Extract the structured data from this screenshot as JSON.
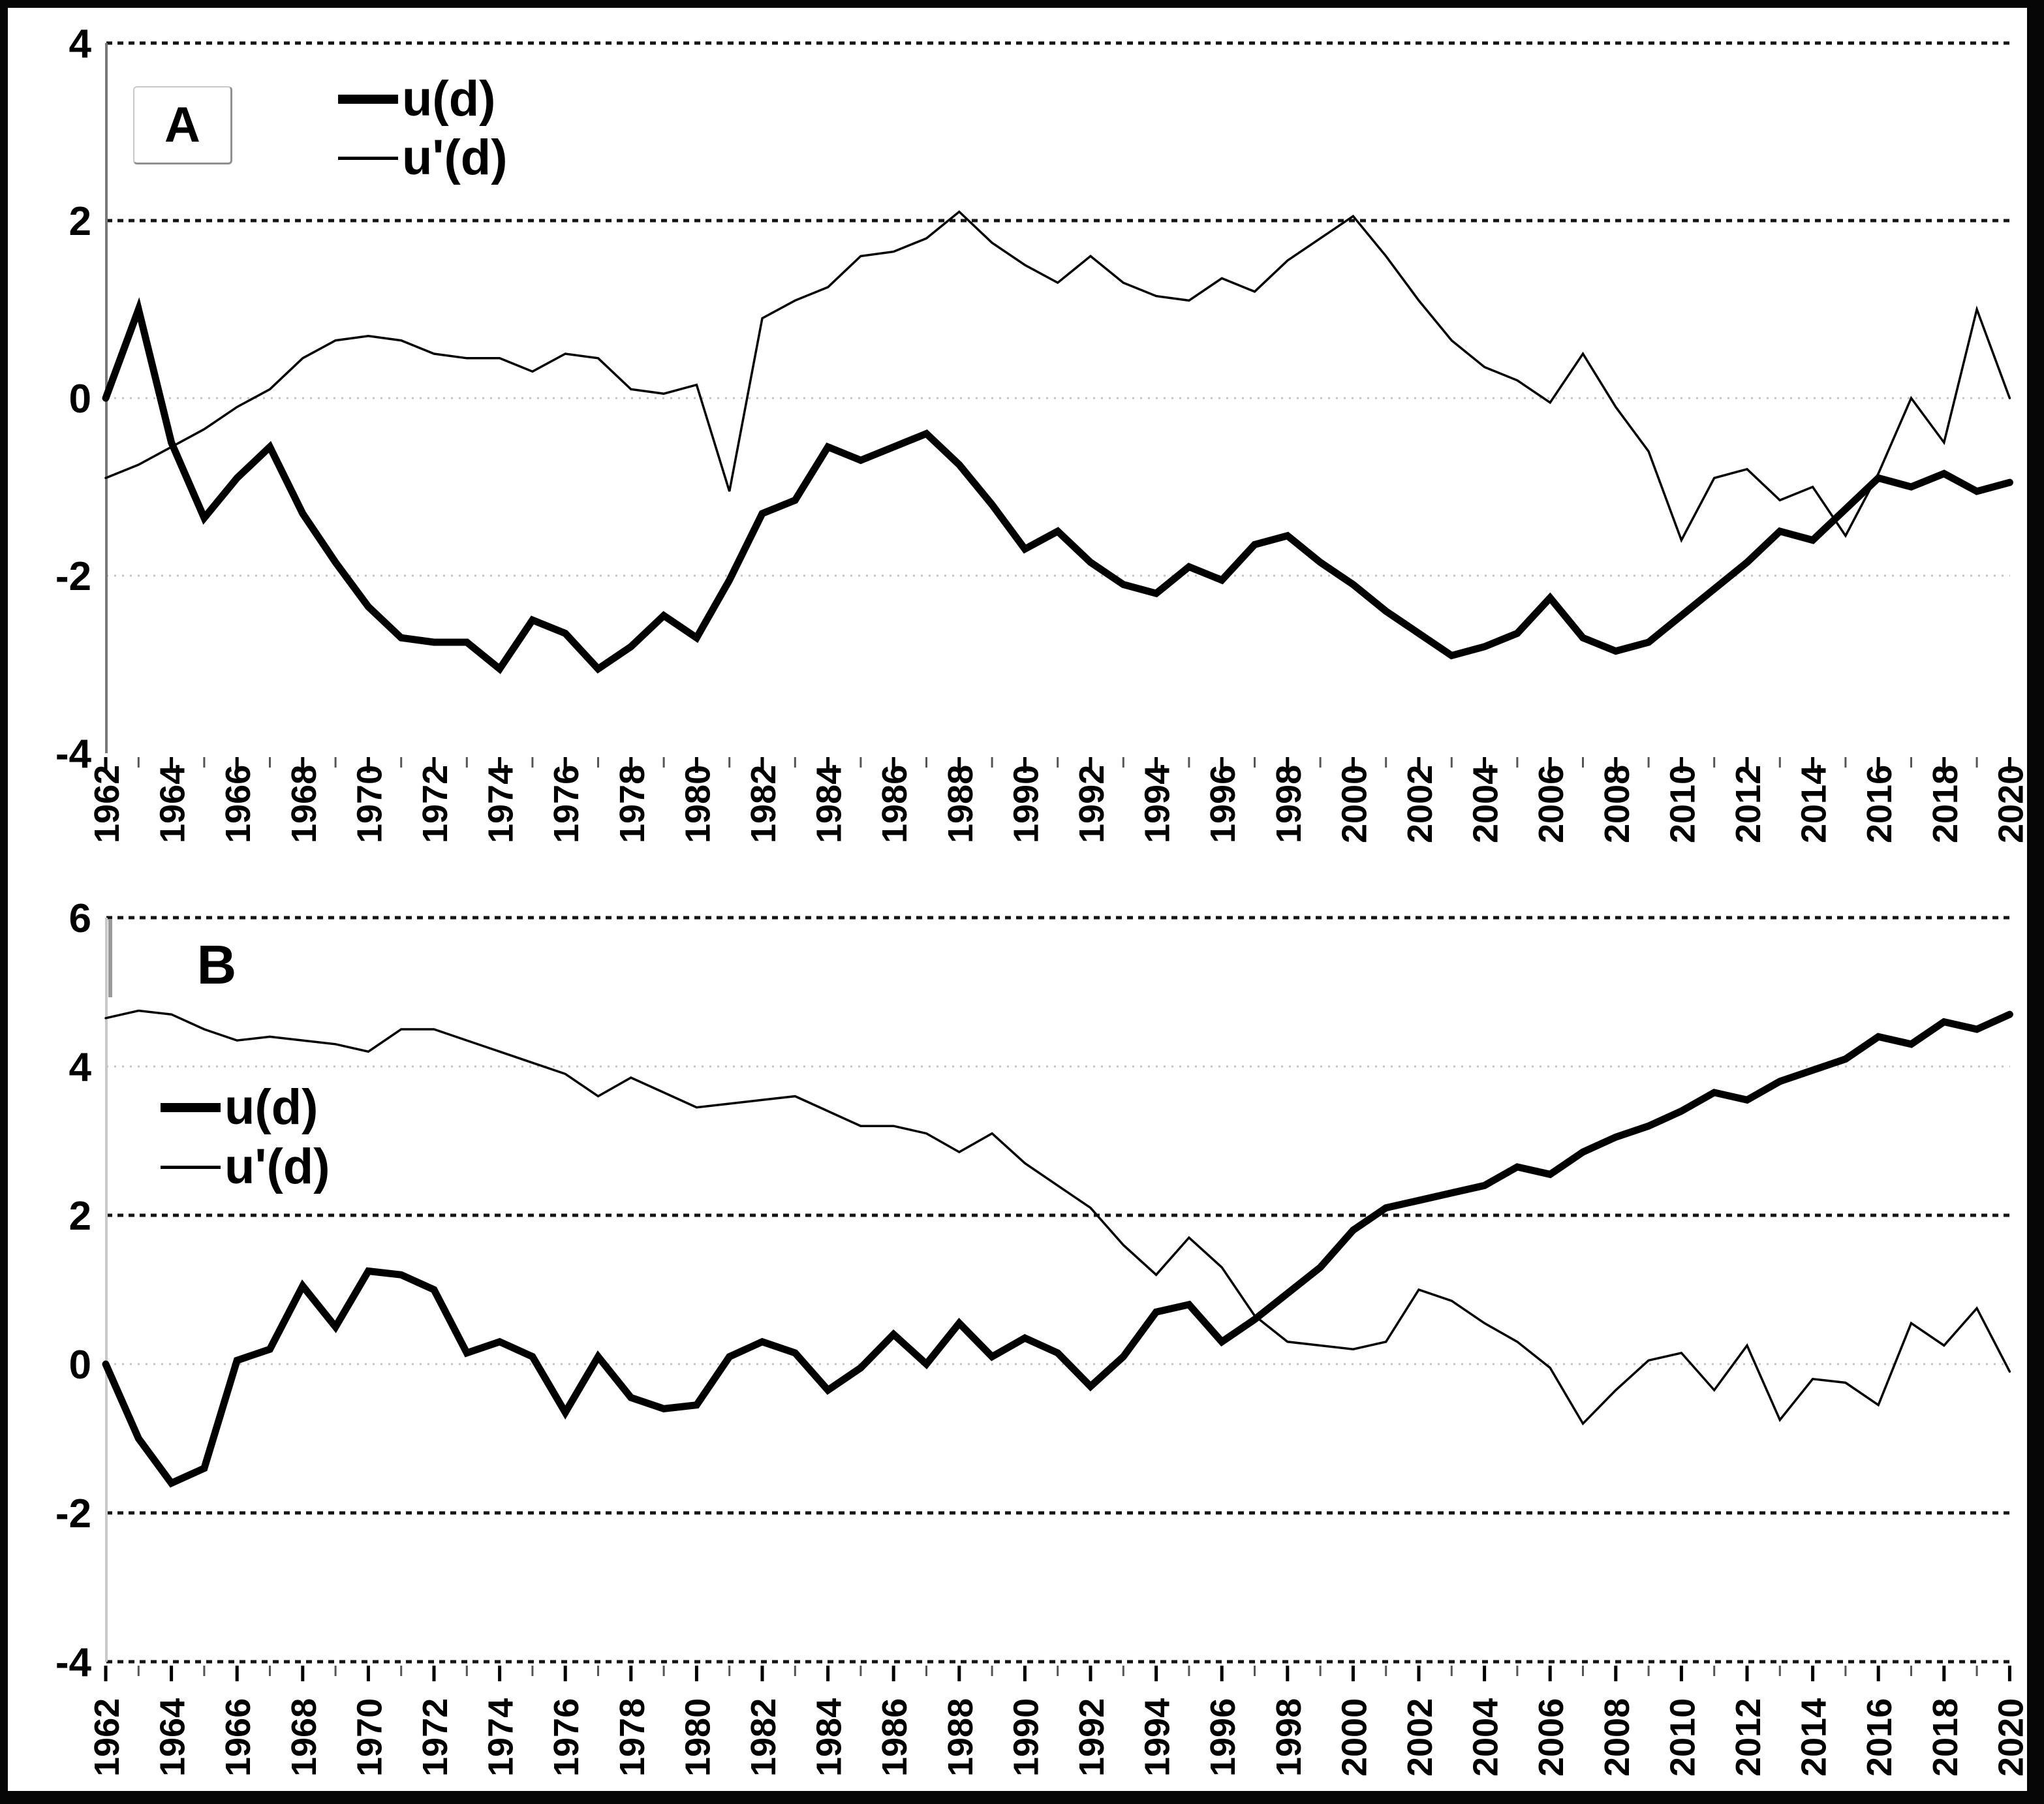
{
  "page": {
    "background": "#ffffff",
    "frame_color": "#060606",
    "line_color": "#000000",
    "grid_dark_color": "#141414",
    "grid_light_color": "#c4c4c4"
  },
  "chart_data": [
    {
      "type": "line",
      "panel_label": "A",
      "x_years": {
        "start": 1962,
        "end": 2020,
        "step": 1
      },
      "x_tick_labels": [
        "1962",
        "1964",
        "1966",
        "1968",
        "1970",
        "1972",
        "1974",
        "1976",
        "1978",
        "1980",
        "1982",
        "1984",
        "1986",
        "1988",
        "1990",
        "1992",
        "1994",
        "1996",
        "1998",
        "2000",
        "2002",
        "2004",
        "2006",
        "2008",
        "2010",
        "2012",
        "2014",
        "2016",
        "2018",
        "2020"
      ],
      "ylim": [
        -4,
        4
      ],
      "y_tick_labels": [
        "4",
        "2",
        "0",
        "-2",
        "-4"
      ],
      "y_tick_values": [
        4,
        2,
        0,
        -2,
        -4
      ],
      "gridlines": {
        "dark": [
          4,
          2
        ],
        "light": [
          0,
          -2
        ]
      },
      "legend": [
        {
          "label": "u(d)",
          "weight": "thick"
        },
        {
          "label": "u'(d)",
          "weight": "thin"
        }
      ],
      "series": [
        {
          "name": "u(d)",
          "weight": "thick",
          "values": [
            0,
            1,
            -0.5,
            -1.35,
            -0.9,
            -0.55,
            -1.3,
            -1.85,
            -2.35,
            -2.7,
            -2.75,
            -2.75,
            -3.05,
            -2.5,
            -2.65,
            -3.05,
            -2.8,
            -2.45,
            -2.7,
            -2.05,
            -1.3,
            -1.15,
            -0.55,
            -0.7,
            -0.55,
            -0.4,
            -0.75,
            -1.2,
            -1.7,
            -1.5,
            -1.85,
            -2.1,
            -2.2,
            -1.9,
            -2.05,
            -1.65,
            -1.55,
            -1.85,
            -2.1,
            -2.4,
            -2.65,
            -2.9,
            -2.8,
            -2.65,
            -2.25,
            -2.7,
            -2.85,
            -2.75,
            -2.45,
            -2.15,
            -1.85,
            -1.5,
            -1.6,
            -1.25,
            -0.9,
            -1.0,
            -0.85,
            -1.05,
            -0.95
          ]
        },
        {
          "name": "u'(d)",
          "weight": "thin",
          "values": [
            -0.9,
            -0.75,
            -0.55,
            -0.35,
            -0.1,
            0.1,
            0.45,
            0.65,
            0.7,
            0.65,
            0.5,
            0.45,
            0.45,
            0.3,
            0.5,
            0.45,
            0.1,
            0.05,
            0.15,
            -1.05,
            0.9,
            1.1,
            1.25,
            1.6,
            1.65,
            1.8,
            2.1,
            1.75,
            1.5,
            1.3,
            1.6,
            1.3,
            1.15,
            1.1,
            1.35,
            1.2,
            1.55,
            1.8,
            2.05,
            1.6,
            1.1,
            0.65,
            0.35,
            0.2,
            -0.05,
            0.5,
            -0.1,
            -0.6,
            -1.6,
            -0.9,
            -0.8,
            -1.15,
            -1.0,
            -1.55,
            -0.85,
            0.0,
            -0.5,
            1.0,
            0.0
          ]
        }
      ]
    },
    {
      "type": "line",
      "panel_label": "B",
      "x_years": {
        "start": 1962,
        "end": 2020,
        "step": 1
      },
      "x_tick_labels": [
        "1962",
        "1964",
        "1966",
        "1968",
        "1970",
        "1972",
        "1974",
        "1976",
        "1978",
        "1980",
        "1982",
        "1984",
        "1986",
        "1988",
        "1990",
        "1992",
        "1994",
        "1996",
        "1998",
        "2000",
        "2002",
        "2004",
        "2006",
        "2008",
        "2010",
        "2012",
        "2014",
        "2016",
        "2018",
        "2020"
      ],
      "ylim": [
        -4,
        6
      ],
      "y_tick_labels": [
        "6",
        "4",
        "2",
        "0",
        "-2",
        "-4"
      ],
      "y_tick_values": [
        6,
        4,
        2,
        0,
        -2,
        -4
      ],
      "gridlines": {
        "dark": [
          6,
          2,
          -2,
          -4
        ],
        "light": [
          4,
          0
        ]
      },
      "legend": [
        {
          "label": "u(d)",
          "weight": "thick"
        },
        {
          "label": "u'(d)",
          "weight": "thin"
        }
      ],
      "series": [
        {
          "name": "u(d)",
          "weight": "thick",
          "values": [
            0,
            -1.0,
            -1.6,
            -1.4,
            0.05,
            0.2,
            1.05,
            0.5,
            1.25,
            1.2,
            1.0,
            0.15,
            0.3,
            0.1,
            -0.65,
            0.1,
            -0.45,
            -0.6,
            -0.55,
            0.1,
            0.3,
            0.15,
            -0.35,
            -0.05,
            0.4,
            0.0,
            0.55,
            0.1,
            0.35,
            0.15,
            -0.3,
            0.1,
            0.7,
            0.8,
            0.3,
            0.6,
            0.95,
            1.3,
            1.8,
            2.1,
            2.2,
            2.3,
            2.4,
            2.65,
            2.55,
            2.85,
            3.05,
            3.2,
            3.4,
            3.65,
            3.55,
            3.8,
            3.95,
            4.1,
            4.4,
            4.3,
            4.6,
            4.5,
            4.7
          ]
        },
        {
          "name": "u'(d)",
          "weight": "thin",
          "values": [
            4.65,
            4.75,
            4.7,
            4.5,
            4.35,
            4.4,
            4.35,
            4.3,
            4.2,
            4.5,
            4.5,
            4.35,
            4.2,
            4.05,
            3.9,
            3.6,
            3.85,
            3.65,
            3.45,
            3.5,
            3.55,
            3.6,
            3.4,
            3.2,
            3.2,
            3.1,
            2.85,
            3.1,
            2.7,
            2.4,
            2.1,
            1.6,
            1.2,
            1.7,
            1.3,
            0.65,
            0.3,
            0.25,
            0.2,
            0.3,
            1.0,
            0.85,
            0.55,
            0.3,
            -0.05,
            -0.8,
            -0.35,
            0.05,
            0.15,
            -0.35,
            0.25,
            -0.75,
            -0.2,
            -0.25,
            -0.55,
            0.55,
            0.25,
            0.75,
            -0.1
          ]
        }
      ]
    }
  ]
}
